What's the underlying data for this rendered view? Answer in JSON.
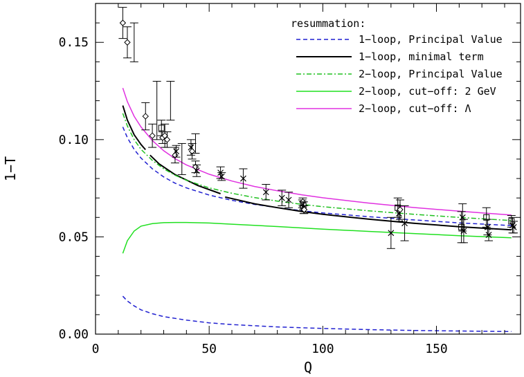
{
  "chart_data": {
    "type": "line",
    "title": "",
    "xlabel": "Q",
    "ylabel": "1−T",
    "xlim": [
      0,
      187
    ],
    "ylim": [
      0,
      0.17
    ],
    "x_ticks": [
      0,
      50,
      100,
      150
    ],
    "x_tick_labels": [
      "0",
      "50",
      "100",
      "150"
    ],
    "y_ticks": [
      0,
      0.05,
      0.1,
      0.15
    ],
    "y_tick_labels": [
      "0.00",
      "0.05",
      "0.10",
      "0.15"
    ],
    "grid": false,
    "legend": {
      "title": "resummation:",
      "placement": "top-right"
    },
    "series": [
      {
        "name": "1−loop, Principal Value",
        "color": "#1f1fd0",
        "dash": "dashed",
        "x": [
          12,
          14,
          17,
          20,
          25,
          30,
          35,
          40,
          50,
          60,
          70,
          80,
          91,
          100,
          120,
          140,
          160,
          170,
          183
        ],
        "y": [
          0.1065,
          0.101,
          0.095,
          0.0905,
          0.085,
          0.0808,
          0.0776,
          0.0752,
          0.0715,
          0.0688,
          0.0667,
          0.065,
          0.0634,
          0.0623,
          0.0604,
          0.0587,
          0.0572,
          0.0566,
          0.0558
        ]
      },
      {
        "name": "1−loop, minimal term",
        "color": "#000000",
        "dash": "solid",
        "segments": [
          {
            "x": [
              12,
              14,
              17,
              20,
              22
            ],
            "y": [
              0.1175,
              0.11,
              0.1025,
              0.0975,
              0.0948
            ]
          },
          {
            "x": [
              24,
              28,
              35,
              45,
              55
            ],
            "y": [
              0.092,
              0.0875,
              0.082,
              0.0764,
              0.0722
            ]
          },
          {
            "x": [
              57,
              70,
              80,
              91,
              100,
              120,
              140,
              160,
              170,
              183
            ],
            "y": [
              0.0705,
              0.067,
              0.065,
              0.063,
              0.0616,
              0.0591,
              0.057,
              0.0552,
              0.0545,
              0.0536
            ]
          }
        ]
      },
      {
        "name": "2−loop, Principal Value",
        "color": "#1fc01f",
        "dash": "dashdot",
        "x": [
          12,
          14,
          17,
          20,
          25,
          30,
          35,
          40,
          50,
          60,
          70,
          80,
          91,
          100,
          120,
          140,
          160,
          170,
          183
        ],
        "y": [
          0.1135,
          0.107,
          0.1,
          0.095,
          0.0893,
          0.085,
          0.0817,
          0.0791,
          0.0752,
          0.0724,
          0.0702,
          0.0684,
          0.0667,
          0.0655,
          0.0634,
          0.0616,
          0.06,
          0.0593,
          0.0584
        ]
      },
      {
        "name": "2−loop, cut−off: 2 GeV",
        "color": "#1fe01f",
        "dash": "solid",
        "x": [
          12,
          14,
          17,
          20,
          25,
          30,
          35,
          40,
          50,
          60,
          80,
          100,
          120,
          140,
          160,
          183
        ],
        "y": [
          0.0415,
          0.048,
          0.053,
          0.0555,
          0.0568,
          0.0573,
          0.0574,
          0.0574,
          0.0571,
          0.0565,
          0.0553,
          0.054,
          0.0528,
          0.0517,
          0.0506,
          0.0495
        ]
      },
      {
        "name": "2−loop, cut−off: Λ",
        "color": "#e030e0",
        "dash": "solid",
        "x": [
          12,
          14,
          17,
          20,
          25,
          30,
          35,
          40,
          50,
          60,
          70,
          80,
          91,
          100,
          120,
          140,
          160,
          170,
          183
        ],
        "y": [
          0.1265,
          0.1195,
          0.112,
          0.1065,
          0.0995,
          0.0943,
          0.0902,
          0.087,
          0.0822,
          0.0787,
          0.0759,
          0.0737,
          0.0716,
          0.0701,
          0.0674,
          0.0651,
          0.0632,
          0.0623,
          0.0612
        ]
      },
      {
        "name": "",
        "color": "#1f1fd0",
        "dash": "dashed",
        "legend": false,
        "x": [
          12,
          14,
          17,
          20,
          25,
          30,
          40,
          50,
          60,
          80,
          100,
          120,
          140,
          160,
          183
        ],
        "y": [
          0.0195,
          0.017,
          0.0145,
          0.0125,
          0.0105,
          0.009,
          0.0072,
          0.0058,
          0.0049,
          0.0037,
          0.0029,
          0.0023,
          0.0019,
          0.0016,
          0.0013
        ]
      }
    ],
    "data_points": [
      {
        "x": 12.0,
        "y": 0.16,
        "err": 0.008,
        "marker": "diamond"
      },
      {
        "x": 14.0,
        "y": 0.15,
        "err": 0.008,
        "marker": "diamond"
      },
      {
        "x": 17.0,
        "y": 0.15,
        "err": 0.01,
        "marker": "none"
      },
      {
        "x": 22.0,
        "y": 0.112,
        "err": 0.007,
        "marker": "diamond"
      },
      {
        "x": 25.0,
        "y": 0.102,
        "err": 0.006,
        "marker": "diamond"
      },
      {
        "x": 27.0,
        "y": 0.115,
        "err": 0.015,
        "marker": "none"
      },
      {
        "x": 29.0,
        "y": 0.106,
        "err": 0.004,
        "marker": "square"
      },
      {
        "x": 29.5,
        "y": 0.101,
        "err": 0.003,
        "marker": "diamond"
      },
      {
        "x": 30.5,
        "y": 0.102,
        "err": 0.006,
        "marker": "diamond"
      },
      {
        "x": 31.5,
        "y": 0.1,
        "err": 0.004,
        "marker": "diamond"
      },
      {
        "x": 33.0,
        "y": 0.12,
        "err": 0.01,
        "marker": "none"
      },
      {
        "x": 35.0,
        "y": 0.092,
        "err": 0.004,
        "marker": "diamond"
      },
      {
        "x": 35.5,
        "y": 0.094,
        "err": 0.003,
        "marker": "cross"
      },
      {
        "x": 38.0,
        "y": 0.09,
        "err": 0.008,
        "marker": "none"
      },
      {
        "x": 42.0,
        "y": 0.096,
        "err": 0.004,
        "marker": "cross"
      },
      {
        "x": 42.5,
        "y": 0.094,
        "err": 0.004,
        "marker": "diamond"
      },
      {
        "x": 44.0,
        "y": 0.098,
        "err": 0.005,
        "marker": "none"
      },
      {
        "x": 44.0,
        "y": 0.086,
        "err": 0.003,
        "marker": "diamond"
      },
      {
        "x": 44.5,
        "y": 0.084,
        "err": 0.003,
        "marker": "cross"
      },
      {
        "x": 55.0,
        "y": 0.083,
        "err": 0.003,
        "marker": "cross"
      },
      {
        "x": 55.5,
        "y": 0.081,
        "err": 0.002,
        "marker": "cross"
      },
      {
        "x": 65.0,
        "y": 0.08,
        "err": 0.005,
        "marker": "cross"
      },
      {
        "x": 75.0,
        "y": 0.073,
        "err": 0.004,
        "marker": "cross"
      },
      {
        "x": 82.0,
        "y": 0.07,
        "err": 0.004,
        "marker": "cross"
      },
      {
        "x": 85.0,
        "y": 0.069,
        "err": 0.004,
        "marker": "cross"
      },
      {
        "x": 91.0,
        "y": 0.067,
        "err": 0.002,
        "marker": "cross"
      },
      {
        "x": 91.2,
        "y": 0.068,
        "err": 0.002,
        "marker": "diamond"
      },
      {
        "x": 91.4,
        "y": 0.066,
        "err": 0.002,
        "marker": "square"
      },
      {
        "x": 91.6,
        "y": 0.065,
        "err": 0.003,
        "marker": "cross"
      },
      {
        "x": 91.8,
        "y": 0.064,
        "err": 0.002,
        "marker": "diamond"
      },
      {
        "x": 130.0,
        "y": 0.052,
        "err": 0.008,
        "marker": "cross"
      },
      {
        "x": 133.0,
        "y": 0.065,
        "err": 0.005,
        "marker": "square"
      },
      {
        "x": 133.5,
        "y": 0.062,
        "err": 0.004,
        "marker": "cross"
      },
      {
        "x": 134.0,
        "y": 0.064,
        "err": 0.005,
        "marker": "diamond"
      },
      {
        "x": 136.0,
        "y": 0.057,
        "err": 0.009,
        "marker": "cross"
      },
      {
        "x": 161.0,
        "y": 0.055,
        "err": 0.008,
        "marker": "square"
      },
      {
        "x": 161.5,
        "y": 0.06,
        "err": 0.007,
        "marker": "cross"
      },
      {
        "x": 162.0,
        "y": 0.053,
        "err": 0.006,
        "marker": "cross"
      },
      {
        "x": 172.0,
        "y": 0.06,
        "err": 0.005,
        "marker": "square"
      },
      {
        "x": 172.5,
        "y": 0.055,
        "err": 0.004,
        "marker": "cross"
      },
      {
        "x": 173.0,
        "y": 0.051,
        "err": 0.003,
        "marker": "cross"
      },
      {
        "x": 183.0,
        "y": 0.058,
        "err": 0.003,
        "marker": "square"
      },
      {
        "x": 183.5,
        "y": 0.056,
        "err": 0.004,
        "marker": "cross"
      },
      {
        "x": 184.0,
        "y": 0.055,
        "err": 0.003,
        "marker": "cross"
      }
    ]
  }
}
